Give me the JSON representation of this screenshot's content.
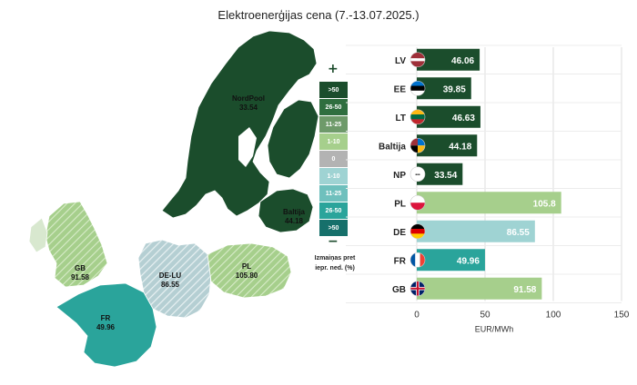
{
  "title": "Elektroenerģijas cena (7.-13.07.2025.)",
  "legend": {
    "plus": "+",
    "minus": "−",
    "cells": [
      {
        "label": ">50",
        "color": "#1b4d2c"
      },
      {
        "label": "26-50",
        "color": "#2f6e3f"
      },
      {
        "label": "11-25",
        "color": "#6e9a6a"
      },
      {
        "label": "1-10",
        "color": "#a6cf8c"
      },
      {
        "label": "0",
        "color": "#b3b3b3"
      },
      {
        "label": "1-10",
        "color": "#9fd3d3"
      },
      {
        "label": "11-25",
        "color": "#6fc0bd"
      },
      {
        "label": "26-50",
        "color": "#2aa49b"
      },
      {
        "label": ">50",
        "color": "#16706b"
      }
    ],
    "caption_line1": "Izmaiņas pret",
    "caption_line2": "iepr. ned. (%)"
  },
  "map": {
    "nordpool": {
      "name": "NordPool",
      "value": "33.54"
    },
    "baltija": {
      "name": "Baltija",
      "value": "44.18"
    },
    "gb": {
      "name": "GB",
      "value": "91.58"
    },
    "delu": {
      "name": "DE-LU",
      "value": "86.55"
    },
    "pl": {
      "name": "PL",
      "value": "105.80"
    },
    "fr": {
      "name": "FR",
      "value": "49.96"
    }
  },
  "chart_data": {
    "type": "bar",
    "orientation": "horizontal",
    "categories": [
      "LV",
      "EE",
      "LT",
      "Baltija",
      "NP",
      "PL",
      "DE",
      "FR",
      "GB"
    ],
    "values": [
      46.06,
      39.85,
      46.63,
      44.18,
      33.54,
      105.8,
      86.55,
      49.96,
      91.58
    ],
    "value_labels": [
      "46.06",
      "39.85",
      "46.63",
      "44.18",
      "33.54",
      "105.8",
      "86.55",
      "49.96",
      "91.58"
    ],
    "bar_colors": [
      "#1b4d2c",
      "#1b4d2c",
      "#1b4d2c",
      "#1b4d2c",
      "#1b4d2c",
      "#a6cf8c",
      "#9fd3d3",
      "#2aa49b",
      "#a6cf8c"
    ],
    "flags": [
      "latvia-flag-icon",
      "estonia-flag-icon",
      "lithuania-flag-icon",
      "baltic-flag-icon",
      "nordpool-logo-icon",
      "poland-flag-icon",
      "germany-flag-icon",
      "france-flag-icon",
      "uk-flag-icon"
    ],
    "xlabel": "EUR/MWh",
    "xlim": [
      0,
      150
    ],
    "ticks": [
      "0",
      "50",
      "100",
      "150"
    ],
    "grid": true
  }
}
